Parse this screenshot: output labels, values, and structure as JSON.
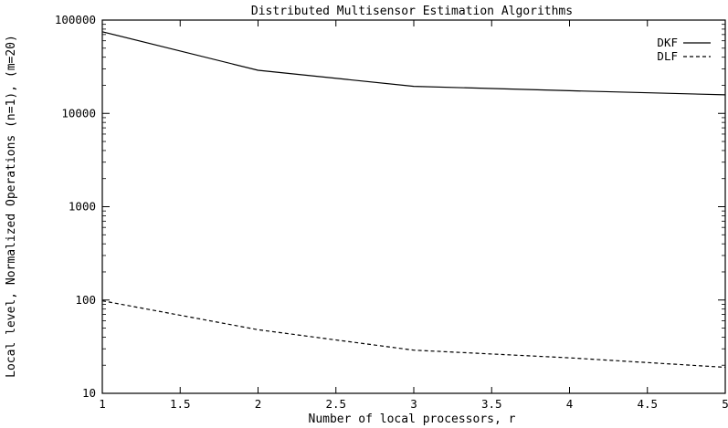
{
  "chart_data": {
    "type": "line",
    "title": "Distributed Multisensor Estimation Algorithms",
    "xlabel": "Number of local processors, r",
    "ylabel": "Local level, Normalized Operations (n=1), (m=20)",
    "x": [
      1,
      2,
      3,
      4,
      5
    ],
    "xlim": [
      1,
      5
    ],
    "ylim": [
      10,
      100000
    ],
    "yscale": "log",
    "x_ticks": [
      "1",
      "1.5",
      "2",
      "2.5",
      "3",
      "3.5",
      "4",
      "4.5",
      "5"
    ],
    "y_ticks": [
      "10",
      "100",
      "1000",
      "10000",
      "100000"
    ],
    "grid": false,
    "legend_position": "top-right",
    "series": [
      {
        "name": "DKF",
        "style": "solid",
        "values": [
          75000,
          29000,
          19500,
          17500,
          15800
        ]
      },
      {
        "name": "DLF",
        "style": "dashed",
        "values": [
          98,
          48,
          29,
          24,
          19
        ]
      }
    ]
  },
  "colors": {
    "line": "#000000",
    "background": "#ffffff"
  }
}
